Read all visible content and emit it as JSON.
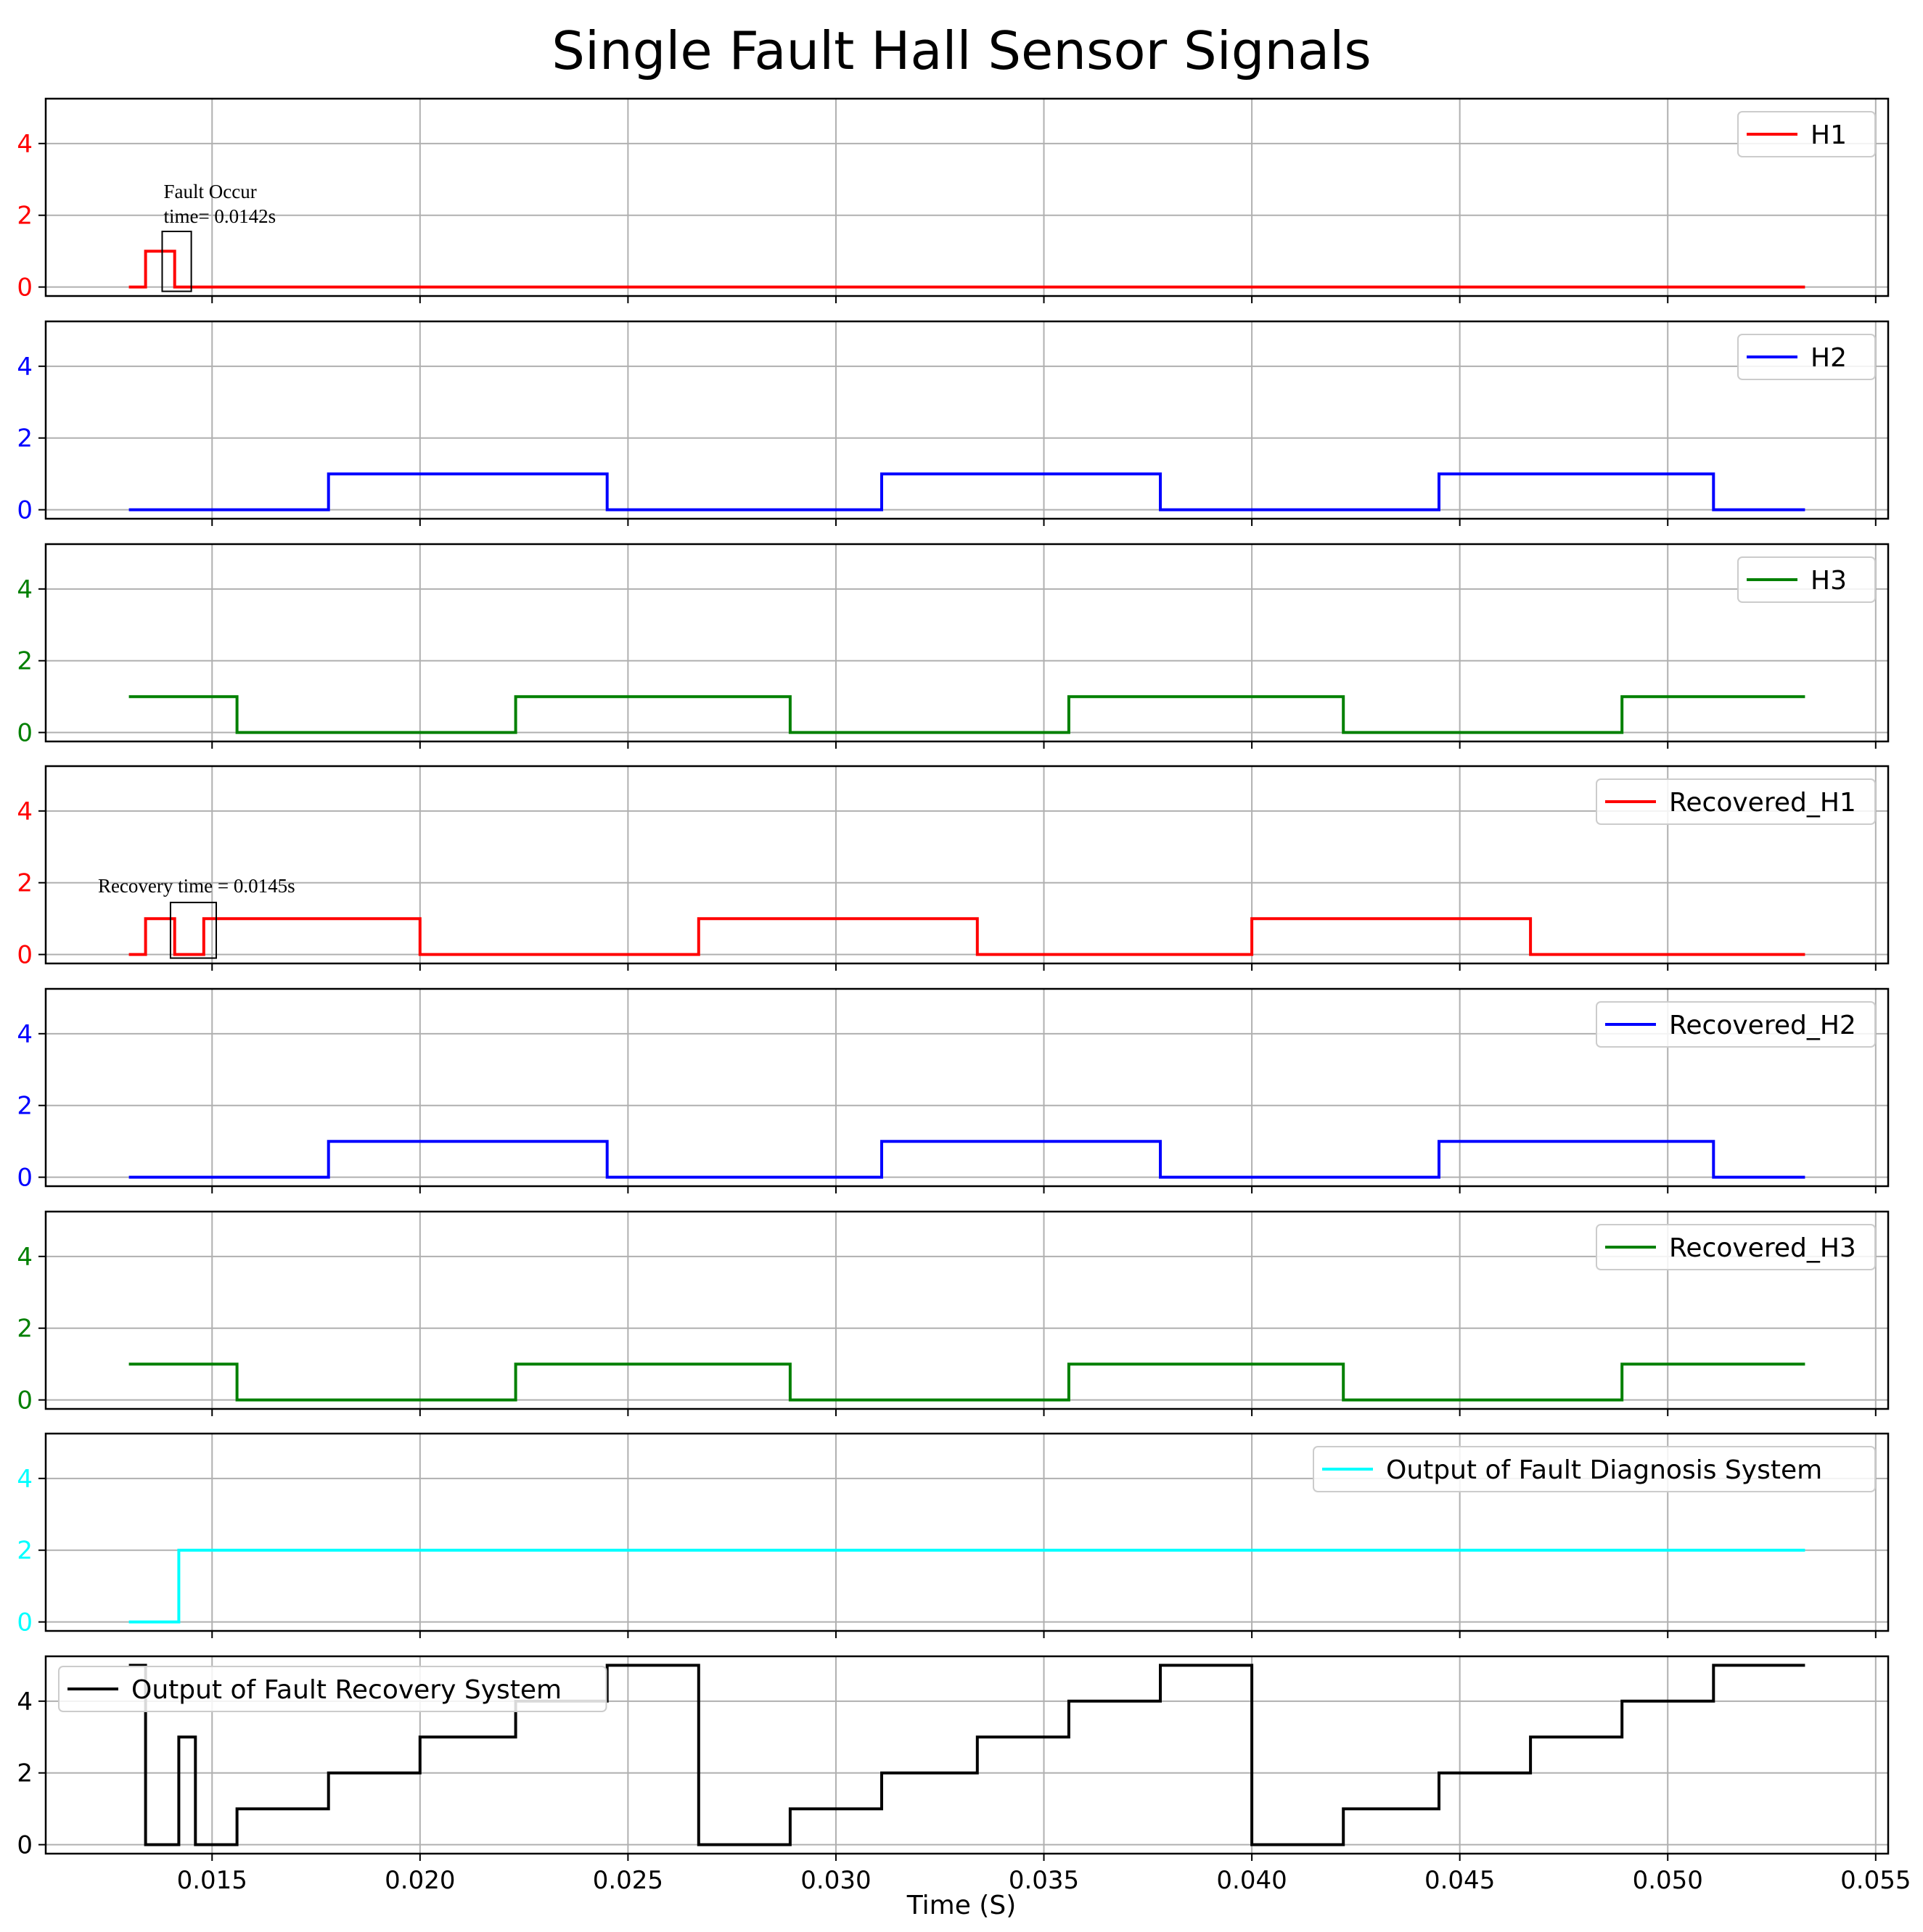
{
  "chart_data": {
    "type": "line",
    "title": "Single Fault Hall Sensor Signals",
    "xlabel": "Time (S)",
    "xlim": [
      0.011,
      0.0553
    ],
    "xticks": [
      0.015,
      0.02,
      0.025,
      0.03,
      0.035,
      0.04,
      0.045,
      0.05,
      0.055
    ],
    "xtick_labels": [
      "0.015",
      "0.020",
      "0.025",
      "0.030",
      "0.035",
      "0.040",
      "0.045",
      "0.050",
      "0.055"
    ],
    "ylim": [
      -0.25,
      5.25
    ],
    "yticks": [
      0,
      2,
      4
    ],
    "ytick_labels": [
      "0",
      "2",
      "4"
    ],
    "grid": true,
    "legend_placement": "upper right",
    "panels": [
      {
        "name": "H1",
        "color": "#ff0000",
        "legend": "upper right",
        "steps": [
          [
            0.013,
            0
          ],
          [
            0.0134,
            1
          ],
          [
            0.0141,
            0
          ],
          [
            0.0533,
            0
          ]
        ],
        "annotation": {
          "text_lines": [
            "Fault Occur",
            "time= 0.0142s"
          ],
          "box_x": [
            0.0138,
            0.0145
          ],
          "box_y": [
            -0.12,
            1.55
          ]
        }
      },
      {
        "name": "H2",
        "color": "#0000ff",
        "legend": "upper right",
        "steps": [
          [
            0.013,
            0
          ],
          [
            0.0178,
            1
          ],
          [
            0.0245,
            0
          ],
          [
            0.0311,
            1
          ],
          [
            0.0378,
            0
          ],
          [
            0.0445,
            1
          ],
          [
            0.0511,
            0
          ],
          [
            0.0533,
            0
          ]
        ]
      },
      {
        "name": "H3",
        "color": "#008000",
        "legend": "upper right",
        "steps": [
          [
            0.013,
            1
          ],
          [
            0.0156,
            0
          ],
          [
            0.0223,
            1
          ],
          [
            0.0289,
            0
          ],
          [
            0.0356,
            1
          ],
          [
            0.0422,
            0
          ],
          [
            0.0489,
            1
          ],
          [
            0.0533,
            1
          ]
        ]
      },
      {
        "name": "Recovered_H1",
        "color": "#ff0000",
        "legend": "upper right",
        "steps": [
          [
            0.013,
            0
          ],
          [
            0.0134,
            1
          ],
          [
            0.0141,
            0
          ],
          [
            0.0148,
            1
          ],
          [
            0.02,
            0
          ],
          [
            0.0267,
            1
          ],
          [
            0.0334,
            0
          ],
          [
            0.04,
            1
          ],
          [
            0.0467,
            0
          ],
          [
            0.0533,
            0
          ]
        ],
        "annotation": {
          "text_lines": [
            "Recovery time = 0.0145s"
          ],
          "box_x": [
            0.014,
            0.0151
          ],
          "box_y": [
            -0.1,
            1.45
          ]
        }
      },
      {
        "name": "Recovered_H2",
        "color": "#0000ff",
        "legend": "upper right",
        "steps": [
          [
            0.013,
            0
          ],
          [
            0.0178,
            1
          ],
          [
            0.0245,
            0
          ],
          [
            0.0311,
            1
          ],
          [
            0.0378,
            0
          ],
          [
            0.0445,
            1
          ],
          [
            0.0511,
            0
          ],
          [
            0.0533,
            0
          ]
        ]
      },
      {
        "name": "Recovered_H3",
        "color": "#008000",
        "legend": "upper right",
        "steps": [
          [
            0.013,
            1
          ],
          [
            0.0156,
            0
          ],
          [
            0.0223,
            1
          ],
          [
            0.0289,
            0
          ],
          [
            0.0356,
            1
          ],
          [
            0.0422,
            0
          ],
          [
            0.0489,
            1
          ],
          [
            0.0533,
            1
          ]
        ]
      },
      {
        "name": "Output of Fault Diagnosis System",
        "color": "#00ffff",
        "legend": "upper right",
        "steps": [
          [
            0.013,
            0
          ],
          [
            0.0142,
            2
          ],
          [
            0.0533,
            2
          ]
        ]
      },
      {
        "name": "Output of Fault Recovery System",
        "color": "#000000",
        "legend": "upper left",
        "steps": [
          [
            0.013,
            5
          ],
          [
            0.0134,
            0
          ],
          [
            0.0142,
            3
          ],
          [
            0.0146,
            0
          ],
          [
            0.0156,
            1
          ],
          [
            0.0178,
            2
          ],
          [
            0.02,
            3
          ],
          [
            0.0223,
            4
          ],
          [
            0.0245,
            5
          ],
          [
            0.0267,
            0
          ],
          [
            0.0289,
            1
          ],
          [
            0.0311,
            2
          ],
          [
            0.0334,
            3
          ],
          [
            0.0356,
            4
          ],
          [
            0.0378,
            5
          ],
          [
            0.04,
            0
          ],
          [
            0.0422,
            1
          ],
          [
            0.0445,
            2
          ],
          [
            0.0467,
            3
          ],
          [
            0.0489,
            4
          ],
          [
            0.0511,
            5
          ],
          [
            0.0533,
            5
          ]
        ]
      }
    ]
  }
}
